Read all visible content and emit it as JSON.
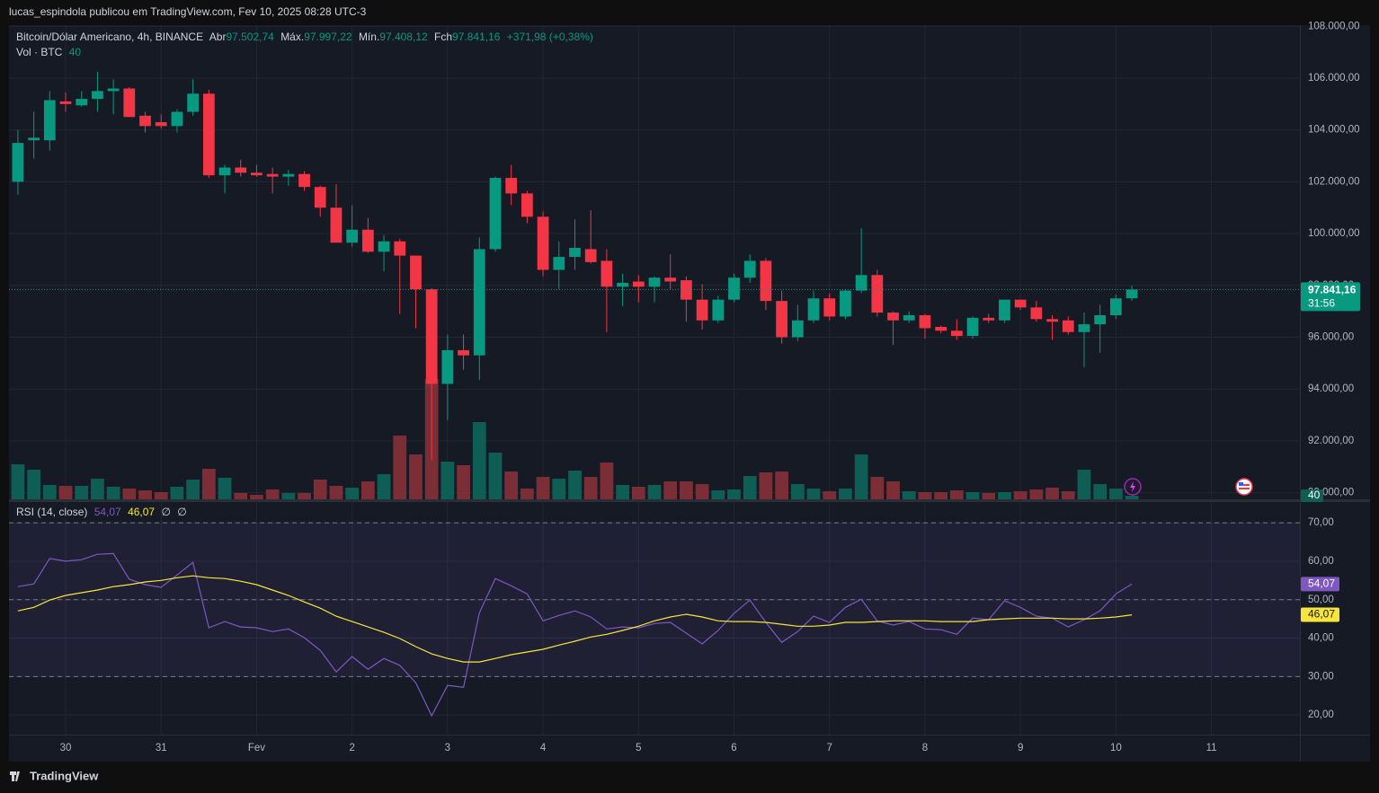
{
  "header": "lucas_espindola publicou em TradingView.com, Fev 10, 2025 08:28 UTC-3",
  "footer": "TradingView",
  "chart_data": [
    {
      "type": "candlestick",
      "legend": {
        "symbol": "Bitcoin/Dólar Americano, 4h, BINANCE",
        "open_label": "Abr",
        "open": "97.502,74",
        "high_label": "Máx.",
        "high": "97.997,22",
        "low_label": "Mín.",
        "low": "97.408,12",
        "close_label": "Fch",
        "close": "97.841,16",
        "change": "+371,98 (+0,38%)",
        "volume_label": "Vol · BTC",
        "volume": "40"
      },
      "up_color": "#089981",
      "down_color": "#f23645",
      "volume_up_color": "#0f5e55",
      "volume_down_color": "#7c2e36",
      "xlim": [
        -0.56,
        80.56
      ],
      "xticks": [
        {
          "value": 3,
          "label": "30"
        },
        {
          "value": 9,
          "label": "31"
        },
        {
          "value": 15,
          "label": "Fev"
        },
        {
          "value": 21,
          "label": "2"
        },
        {
          "value": 27,
          "label": "3"
        },
        {
          "value": 33,
          "label": "4"
        },
        {
          "value": 39,
          "label": "5"
        },
        {
          "value": 45,
          "label": "6"
        },
        {
          "value": 51,
          "label": "7"
        },
        {
          "value": 57,
          "label": "8"
        },
        {
          "value": 63,
          "label": "9"
        },
        {
          "value": 69,
          "label": "10"
        },
        {
          "value": 75,
          "label": "11"
        }
      ],
      "ylim": [
        89744,
        108045
      ],
      "yticks": [
        {
          "value": 90000,
          "label": "90.000,00"
        },
        {
          "value": 92000,
          "label": "92.000,00"
        },
        {
          "value": 94000,
          "label": "94.000,00"
        },
        {
          "value": 96000,
          "label": "96.000,00"
        },
        {
          "value": 98000,
          "label": "98.000,00"
        },
        {
          "value": 100000,
          "label": "100.000,00"
        },
        {
          "value": 102000,
          "label": "102.000,00"
        },
        {
          "value": 104000,
          "label": "104.000,00"
        },
        {
          "value": 106000,
          "label": "106.000,00"
        },
        {
          "value": 108000,
          "label": "108.000,00"
        }
      ],
      "volume_lim": [
        0,
        5280
      ],
      "grid": true,
      "last_price": {
        "value": 97841.16,
        "label": "97.841,16",
        "countdown": "31:56"
      },
      "volume_last": {
        "value": 40,
        "label": "40"
      },
      "open": [
        102000,
        103600,
        103600,
        105100,
        104950,
        105200,
        105500,
        105600,
        104550,
        104300,
        104150,
        104700,
        105400,
        102250,
        102550,
        102350,
        102300,
        102200,
        102300,
        101800,
        101000,
        99650,
        100150,
        99300,
        99700,
        99150,
        97850,
        94200,
        95500,
        95300,
        99400,
        102150,
        101550,
        100650,
        98600,
        99100,
        99400,
        98950,
        97950,
        98150,
        97950,
        98300,
        98200,
        97450,
        96650,
        97450,
        98300,
        98950,
        97400,
        96000,
        96650,
        97500,
        96800,
        97800,
        98400,
        96950,
        96650,
        96850,
        96400,
        96250,
        96050,
        96750,
        96650,
        97450,
        97150,
        96700,
        96650,
        96200,
        96500,
        96850,
        97502.74
      ],
      "high": [
        104000,
        104700,
        105500,
        105450,
        105500,
        106250,
        105950,
        105650,
        104700,
        104600,
        104800,
        105950,
        105550,
        102650,
        102850,
        102650,
        102550,
        102450,
        102400,
        101850,
        101900,
        101100,
        100600,
        99950,
        99800,
        99150,
        97900,
        96100,
        96100,
        99850,
        102200,
        102650,
        101650,
        100850,
        99700,
        100550,
        100900,
        99400,
        98450,
        98400,
        98350,
        99200,
        98350,
        98050,
        97600,
        98450,
        99200,
        99050,
        97800,
        97250,
        97800,
        97700,
        97850,
        100200,
        98600,
        97000,
        97000,
        96900,
        96450,
        96700,
        96800,
        96900,
        97450,
        97450,
        97400,
        96850,
        96800,
        96950,
        97250,
        97650,
        97997.22
      ],
      "low": [
        101500,
        102900,
        103200,
        104700,
        104900,
        104700,
        104600,
        104500,
        103900,
        104050,
        103900,
        104550,
        102150,
        101550,
        102200,
        102200,
        101550,
        101850,
        101650,
        100650,
        99650,
        99500,
        99250,
        98550,
        96900,
        96350,
        91250,
        92800,
        94750,
        94350,
        99300,
        101100,
        100400,
        98350,
        97850,
        98600,
        98850,
        96200,
        97200,
        97350,
        97350,
        97850,
        96600,
        96300,
        96550,
        97350,
        98100,
        97050,
        95750,
        95850,
        96550,
        96650,
        96700,
        97700,
        96800,
        95700,
        96550,
        95950,
        96150,
        95900,
        95950,
        96550,
        96550,
        97050,
        96600,
        95900,
        96100,
        94850,
        95400,
        96700,
        97408.12
      ],
      "close": [
        103500,
        103700,
        105150,
        105000,
        105200,
        105500,
        105600,
        104500,
        104150,
        104150,
        104700,
        105400,
        102250,
        102550,
        102350,
        102250,
        102200,
        102300,
        101800,
        101000,
        99650,
        100150,
        99300,
        99700,
        99150,
        97850,
        94200,
        95500,
        95300,
        99400,
        102150,
        101550,
        100650,
        98600,
        99100,
        99450,
        98900,
        97950,
        98100,
        97950,
        98300,
        98150,
        97450,
        96650,
        97450,
        98300,
        98950,
        97400,
        96000,
        96650,
        97500,
        96800,
        97800,
        98400,
        96950,
        96650,
        96850,
        96350,
        96250,
        96050,
        96750,
        96650,
        97450,
        97150,
        96700,
        96600,
        96200,
        96500,
        96850,
        97500,
        97841.16
      ],
      "volume": [
        390,
        330,
        160,
        150,
        150,
        230,
        140,
        120,
        100,
        80,
        140,
        220,
        340,
        240,
        70,
        50,
        110,
        70,
        70,
        220,
        150,
        130,
        200,
        280,
        710,
        500,
        1340,
        420,
        380,
        860,
        520,
        310,
        120,
        250,
        230,
        320,
        250,
        410,
        160,
        140,
        160,
        200,
        200,
        170,
        100,
        110,
        260,
        300,
        310,
        170,
        120,
        90,
        120,
        500,
        250,
        200,
        90,
        80,
        80,
        100,
        80,
        70,
        80,
        90,
        110,
        130,
        90,
        330,
        170,
        120,
        40
      ]
    },
    {
      "type": "line",
      "legend": {
        "name": "RSI (14, close)",
        "rsi": "54,07",
        "ma": "46,07",
        "sym1": "∅",
        "sym2": "∅"
      },
      "xlim": [
        -0.56,
        80.56
      ],
      "ylim": [
        14.9,
        75.4
      ],
      "yticks": [
        {
          "value": 20,
          "label": "20,00"
        },
        {
          "value": 30,
          "label": "30,00"
        },
        {
          "value": 40,
          "label": "40,00"
        },
        {
          "value": 50,
          "label": "50,00"
        },
        {
          "value": 60,
          "label": "60,00"
        },
        {
          "value": 70,
          "label": "70,00"
        }
      ],
      "bands": {
        "upper": 70,
        "middle": 50,
        "lower": 30
      },
      "band_color": "#7e57c2",
      "series": [
        {
          "name": "RSI",
          "color": "#7e57c2",
          "last_label": "54,07",
          "values": [
            53.4,
            54.1,
            60.7,
            60,
            60.4,
            61.8,
            62,
            55.3,
            53.9,
            53.2,
            56.4,
            59.7,
            42.7,
            44.3,
            42.9,
            42.7,
            41.7,
            42.4,
            40.1,
            36.8,
            31.2,
            35.2,
            31.9,
            34.7,
            32.9,
            28.4,
            19.8,
            27.7,
            27.2,
            46.6,
            55.5,
            53.6,
            51.5,
            44.5,
            45.9,
            47.1,
            45.5,
            42.4,
            42.9,
            42.7,
            43.8,
            44.1,
            41.3,
            38.5,
            42,
            46.4,
            49.9,
            44.1,
            38.9,
            41.7,
            45.7,
            44.1,
            48,
            50.1,
            44.5,
            43.4,
            44.3,
            42.4,
            42.2,
            41,
            45.2,
            44.8,
            49.7,
            48,
            45.7,
            45.2,
            42.9,
            44.8,
            47.1,
            51.5,
            54.07
          ]
        },
        {
          "name": "RSI MA",
          "color": "#f7e53b",
          "last_label": "46,07",
          "values": [
            47.1,
            48,
            49.9,
            51.1,
            51.8,
            52.5,
            53.4,
            53.9,
            54.6,
            55,
            55.7,
            56.2,
            55.7,
            55.5,
            54.8,
            53.9,
            52.5,
            51.1,
            49.4,
            47.8,
            45.7,
            44.3,
            42.9,
            41.5,
            39.9,
            37.8,
            35.9,
            34.7,
            33.8,
            33.8,
            34.7,
            35.7,
            36.4,
            37.1,
            38.2,
            39.2,
            40.3,
            41,
            42,
            43.1,
            44.5,
            45.5,
            46.2,
            45.5,
            44.5,
            44.3,
            44.3,
            44.1,
            43.6,
            43.1,
            43.1,
            43.4,
            44.1,
            44.1,
            44.3,
            44.5,
            44.5,
            44.5,
            44.3,
            44.3,
            44.3,
            44.8,
            45,
            45.2,
            45.2,
            45.2,
            45,
            45,
            45.2,
            45.5,
            46.07
          ]
        }
      ]
    }
  ]
}
